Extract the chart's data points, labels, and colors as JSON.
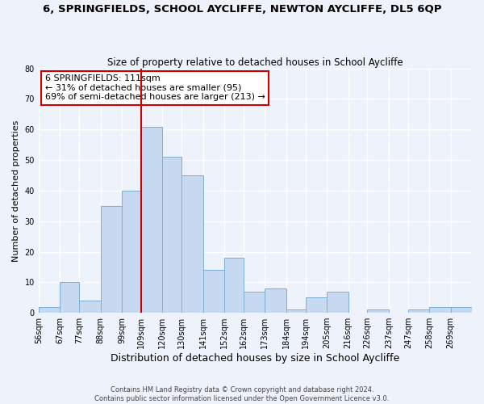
{
  "title": "6, SPRINGFIELDS, SCHOOL AYCLIFFE, NEWTON AYCLIFFE, DL5 6QP",
  "subtitle": "Size of property relative to detached houses in School Aycliffe",
  "xlabel": "Distribution of detached houses by size in School Aycliffe",
  "ylabel": "Number of detached properties",
  "bin_labels": [
    "56sqm",
    "67sqm",
    "77sqm",
    "88sqm",
    "99sqm",
    "109sqm",
    "120sqm",
    "130sqm",
    "141sqm",
    "152sqm",
    "162sqm",
    "173sqm",
    "184sqm",
    "194sqm",
    "205sqm",
    "216sqm",
    "226sqm",
    "237sqm",
    "247sqm",
    "258sqm",
    "269sqm"
  ],
  "bin_edges": [
    56,
    67,
    77,
    88,
    99,
    109,
    120,
    130,
    141,
    152,
    162,
    173,
    184,
    194,
    205,
    216,
    226,
    237,
    247,
    258,
    269
  ],
  "bar_heights": [
    2,
    10,
    4,
    35,
    40,
    61,
    51,
    45,
    14,
    18,
    7,
    8,
    1,
    5,
    7,
    0,
    1,
    0,
    1,
    2,
    2
  ],
  "bar_color": "#c6d9f0",
  "bar_edge_color": "#7aafd4",
  "vline_x": 109,
  "vline_color": "#cc0000",
  "annotation_text": "6 SPRINGFIELDS: 111sqm\n← 31% of detached houses are smaller (95)\n69% of semi-detached houses are larger (213) →",
  "annotation_box_color": "#ffffff",
  "annotation_box_edge": "#cc0000",
  "ylim": [
    0,
    80
  ],
  "yticks": [
    0,
    10,
    20,
    30,
    40,
    50,
    60,
    70,
    80
  ],
  "background_color": "#eef2fa",
  "grid_color": "#ffffff",
  "footer_line1": "Contains HM Land Registry data © Crown copyright and database right 2024.",
  "footer_line2": "Contains public sector information licensed under the Open Government Licence v3.0."
}
